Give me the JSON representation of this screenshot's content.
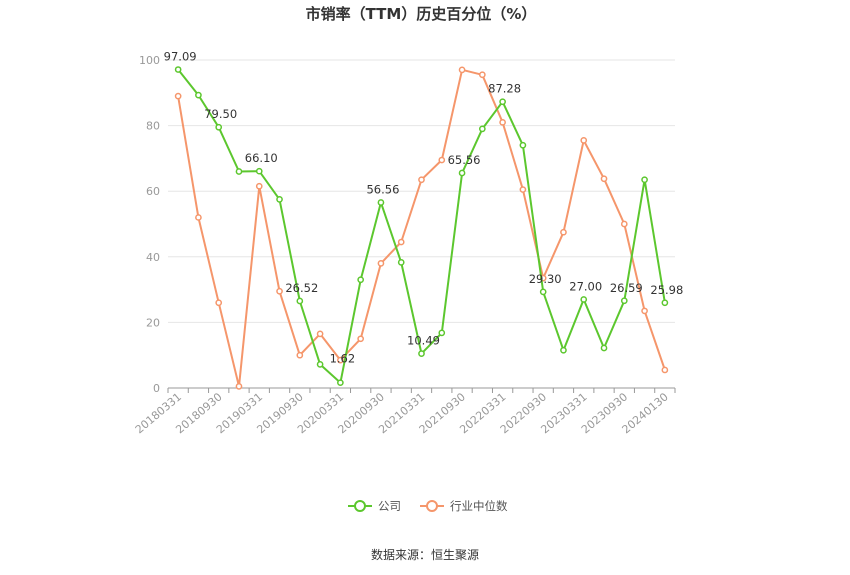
{
  "chart_data": {
    "type": "line",
    "title": "市销率（TTM）历史百分位（%）",
    "source": "数据来源：恒生聚源",
    "ylim": [
      0,
      100
    ],
    "yticks": [
      0,
      20,
      40,
      60,
      80,
      100
    ],
    "grid": true,
    "legend_position": "bottom-center",
    "x": [
      "20180331",
      "20180630",
      "20180930",
      "20181231",
      "20190331",
      "20190630",
      "20190930",
      "20191231",
      "20200331",
      "20200630",
      "20200930",
      "20201231",
      "20210331",
      "20210630",
      "20210930",
      "20211231",
      "20220331",
      "20220630",
      "20220930",
      "20221231",
      "20230331",
      "20230630",
      "20230930",
      "20231231",
      "20240130"
    ],
    "xtick_labels": [
      "20180331",
      "20180930",
      "20190331",
      "20190930",
      "20200331",
      "20200930",
      "20210331",
      "20210930",
      "20220331",
      "20220930",
      "20230331",
      "20230930",
      "20240130"
    ],
    "series": [
      {
        "name": "公司",
        "color": "#5cc72e",
        "values": [
          97.09,
          89.3,
          79.5,
          66.0,
          66.1,
          57.5,
          26.52,
          7.2,
          1.62,
          33.0,
          56.56,
          38.3,
          10.49,
          16.8,
          65.56,
          79.0,
          87.28,
          74.0,
          29.3,
          11.5,
          27.0,
          12.2,
          26.59,
          63.5,
          25.98
        ],
        "labels": [
          "97.09",
          null,
          "79.50",
          null,
          "66.10",
          null,
          "26.52",
          null,
          "1.62",
          null,
          "56.56",
          null,
          "10.49",
          null,
          "65.56",
          null,
          "87.28",
          null,
          "29.30",
          null,
          "27.00",
          null,
          "26.59",
          null,
          "25.98"
        ]
      },
      {
        "name": "行业中位数",
        "color": "#f5966b",
        "values": [
          89.0,
          52.0,
          26.0,
          0.5,
          61.5,
          29.5,
          10.0,
          16.5,
          8.5,
          15.0,
          38.0,
          44.5,
          63.5,
          69.5,
          97.0,
          95.5,
          81.0,
          60.5,
          33.5,
          47.5,
          75.5,
          63.8,
          50.0,
          23.5,
          5.5
        ]
      }
    ]
  }
}
